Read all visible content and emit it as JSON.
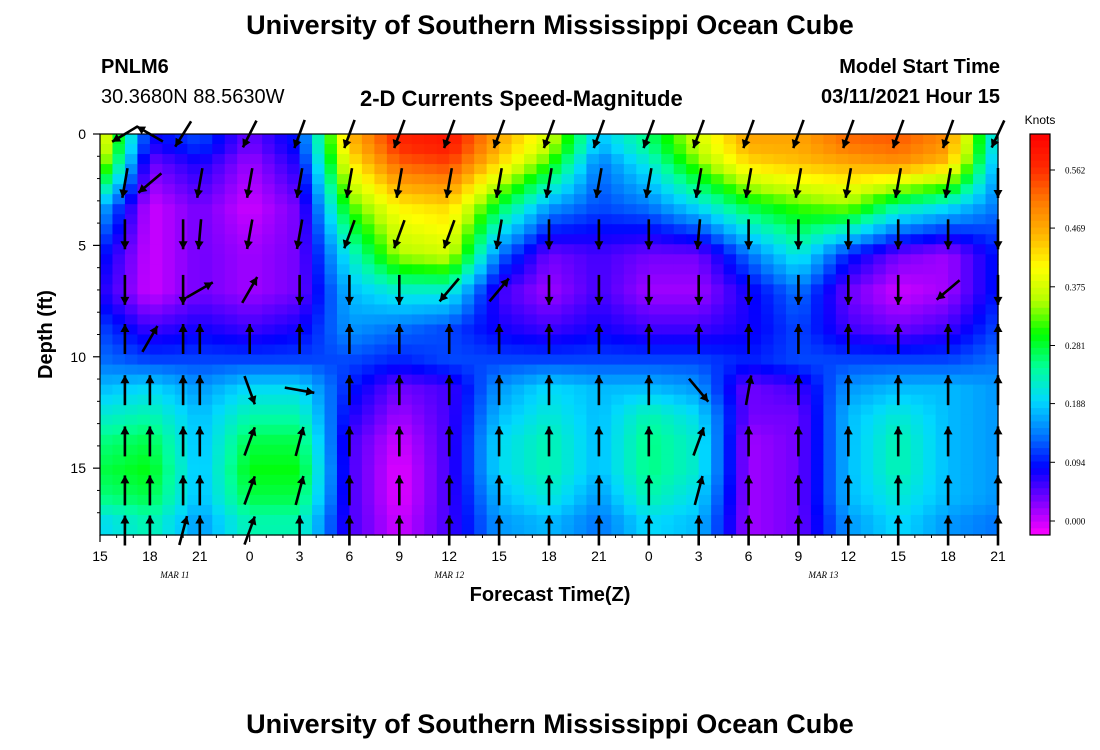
{
  "page": {
    "title_top": "University of Southern Mississippi Ocean Cube",
    "title_bottom": "University of Southern Mississippi Ocean Cube",
    "station_id": "PNLM6",
    "station_coords": "30.3680N 88.5630W",
    "plot_title": "2-D Currents Speed-Magnitude",
    "model_start_label": "Model Start Time",
    "model_start_value": "03/11/2021 Hour 15"
  },
  "chart_data": {
    "type": "heatmap",
    "title": "2-D Currents Speed-Magnitude",
    "xlabel": "Forecast Time(Z)",
    "ylabel": "Depth (ft)",
    "x_tick_labels": [
      "15",
      "18",
      "21",
      "0",
      "3",
      "6",
      "9",
      "12",
      "15",
      "18",
      "21",
      "0",
      "3",
      "6",
      "9",
      "12",
      "15",
      "18",
      "21"
    ],
    "date_labels": [
      {
        "label": "MAR 11",
        "x_hour": 4.5
      },
      {
        "label": "MAR 12",
        "x_hour": 21
      },
      {
        "label": "MAR 13",
        "x_hour": 43.5
      }
    ],
    "x_range_hours": [
      0,
      54
    ],
    "y_ticks": [
      0,
      5,
      10,
      15
    ],
    "y_range_ft": [
      0,
      18
    ],
    "colorbar": {
      "unit": "Knots",
      "tick_labels": [
        "0.562",
        "0.469",
        "0.375",
        "0.281",
        "0.188",
        "0.094",
        "0.000"
      ],
      "tick_values": [
        0.562,
        0.469,
        0.375,
        0.281,
        0.188,
        0.094,
        0.0
      ],
      "range": [
        0.0,
        0.65
      ],
      "colors": [
        "#ff00ff",
        "#7e00ff",
        "#0000ff",
        "#0078ff",
        "#00d8ff",
        "#00ff9a",
        "#00ff00",
        "#b4ff00",
        "#ffff00",
        "#ffb400",
        "#ff7800",
        "#ff2800",
        "#ff0000"
      ]
    },
    "depth_levels_ft": [
      0.4,
      1.3,
      3.3,
      5.4,
      7.1,
      8.7,
      10.2,
      11.4,
      12.6,
      13.8,
      15.1,
      16.3,
      17.4
    ],
    "time_columns_hours": [
      0,
      3,
      6,
      9,
      12,
      15,
      18,
      21,
      24,
      27,
      30,
      33,
      36,
      39,
      42,
      45,
      48,
      51,
      54
    ],
    "speed_grid_knots": [
      [
        0.44,
        0.1,
        0.14,
        0.06,
        0.12,
        0.48,
        0.6,
        0.62,
        0.5,
        0.4,
        0.2,
        0.28,
        0.4,
        0.5,
        0.5,
        0.55,
        0.56,
        0.52,
        0.2
      ],
      [
        0.4,
        0.06,
        0.1,
        0.04,
        0.1,
        0.44,
        0.56,
        0.58,
        0.46,
        0.34,
        0.16,
        0.24,
        0.36,
        0.46,
        0.48,
        0.5,
        0.52,
        0.48,
        0.18
      ],
      [
        0.2,
        0.02,
        0.06,
        0.02,
        0.06,
        0.34,
        0.44,
        0.46,
        0.3,
        0.18,
        0.14,
        0.16,
        0.22,
        0.3,
        0.34,
        0.36,
        0.26,
        0.22,
        0.16
      ],
      [
        0.12,
        0.02,
        0.06,
        0.04,
        0.06,
        0.24,
        0.38,
        0.4,
        0.16,
        0.06,
        0.08,
        0.06,
        0.06,
        0.16,
        0.24,
        0.12,
        0.06,
        0.04,
        0.12
      ],
      [
        0.1,
        0.02,
        0.06,
        0.04,
        0.06,
        0.2,
        0.24,
        0.24,
        0.08,
        0.04,
        0.08,
        0.04,
        0.04,
        0.1,
        0.16,
        0.06,
        0.02,
        0.04,
        0.12
      ],
      [
        0.14,
        0.08,
        0.1,
        0.08,
        0.1,
        0.18,
        0.16,
        0.14,
        0.1,
        0.08,
        0.1,
        0.08,
        0.08,
        0.1,
        0.14,
        0.08,
        0.06,
        0.08,
        0.14
      ],
      [
        0.16,
        0.14,
        0.14,
        0.14,
        0.14,
        0.14,
        0.12,
        0.14,
        0.14,
        0.14,
        0.14,
        0.14,
        0.14,
        0.12,
        0.14,
        0.14,
        0.14,
        0.14,
        0.16
      ],
      [
        0.2,
        0.22,
        0.18,
        0.22,
        0.22,
        0.12,
        0.06,
        0.08,
        0.18,
        0.22,
        0.2,
        0.2,
        0.18,
        0.06,
        0.08,
        0.18,
        0.2,
        0.2,
        0.18
      ],
      [
        0.24,
        0.26,
        0.2,
        0.26,
        0.26,
        0.1,
        0.04,
        0.08,
        0.2,
        0.24,
        0.2,
        0.26,
        0.22,
        0.06,
        0.06,
        0.2,
        0.24,
        0.2,
        0.18
      ],
      [
        0.28,
        0.3,
        0.2,
        0.3,
        0.3,
        0.08,
        0.02,
        0.08,
        0.22,
        0.26,
        0.2,
        0.28,
        0.24,
        0.04,
        0.06,
        0.2,
        0.26,
        0.2,
        0.18
      ],
      [
        0.3,
        0.32,
        0.2,
        0.32,
        0.32,
        0.08,
        0.01,
        0.08,
        0.22,
        0.26,
        0.2,
        0.28,
        0.24,
        0.04,
        0.06,
        0.2,
        0.26,
        0.2,
        0.18
      ],
      [
        0.28,
        0.3,
        0.2,
        0.3,
        0.3,
        0.08,
        0.01,
        0.08,
        0.2,
        0.24,
        0.18,
        0.26,
        0.22,
        0.04,
        0.06,
        0.2,
        0.24,
        0.2,
        0.18
      ],
      [
        0.22,
        0.26,
        0.18,
        0.26,
        0.26,
        0.08,
        0.02,
        0.08,
        0.18,
        0.2,
        0.16,
        0.22,
        0.2,
        0.04,
        0.06,
        0.18,
        0.22,
        0.18,
        0.16
      ]
    ],
    "vector_columns_hours": [
      1.5,
      3,
      5,
      6,
      9,
      12,
      15,
      18,
      21,
      24,
      27,
      30,
      33,
      36,
      39,
      42,
      45,
      48,
      51,
      54
    ],
    "vector_rows": [
      {
        "depth": 0,
        "angles_deg": [
          239,
          300,
          212,
          null,
          207,
          200,
          200,
          200,
          200,
          200,
          200,
          200,
          200,
          200,
          200,
          200,
          200,
          200,
          200,
          205
        ]
      },
      {
        "depth": 2.2,
        "angles_deg": [
          190,
          230,
          null,
          190,
          190,
          190,
          190,
          190,
          190,
          190,
          190,
          190,
          190,
          190,
          190,
          190,
          190,
          190,
          190,
          180
        ]
      },
      {
        "depth": 4.5,
        "angles_deg": [
          180,
          null,
          180,
          185,
          190,
          190,
          200,
          200,
          200,
          190,
          180,
          180,
          180,
          185,
          180,
          180,
          180,
          180,
          180,
          180
        ]
      },
      {
        "depth": 7,
        "angles_deg": [
          180,
          null,
          180,
          60,
          30,
          180,
          180,
          180,
          220,
          40,
          180,
          180,
          180,
          180,
          180,
          180,
          180,
          180,
          230,
          180
        ]
      },
      {
        "depth": 9.2,
        "angles_deg": [
          0,
          30,
          0,
          0,
          0,
          0,
          0,
          0,
          0,
          0,
          0,
          0,
          0,
          0,
          0,
          0,
          0,
          0,
          0,
          0
        ]
      },
      {
        "depth": 11.5,
        "angles_deg": [
          0,
          0,
          0,
          0,
          160,
          100,
          0,
          0,
          0,
          0,
          0,
          0,
          0,
          140,
          10,
          0,
          0,
          0,
          0,
          0
        ]
      },
      {
        "depth": 13.8,
        "angles_deg": [
          0,
          0,
          0,
          0,
          20,
          15,
          0,
          0,
          0,
          0,
          0,
          0,
          0,
          20,
          0,
          0,
          0,
          0,
          0,
          0
        ]
      },
      {
        "depth": 16,
        "angles_deg": [
          0,
          0,
          0,
          0,
          20,
          15,
          0,
          0,
          0,
          0,
          0,
          0,
          0,
          15,
          0,
          0,
          0,
          0,
          0,
          0
        ]
      },
      {
        "depth": 17.8,
        "angles_deg": [
          0,
          0,
          15,
          0,
          20,
          0,
          0,
          0,
          0,
          0,
          0,
          0,
          0,
          0,
          0,
          0,
          0,
          0,
          0,
          0
        ]
      }
    ]
  }
}
